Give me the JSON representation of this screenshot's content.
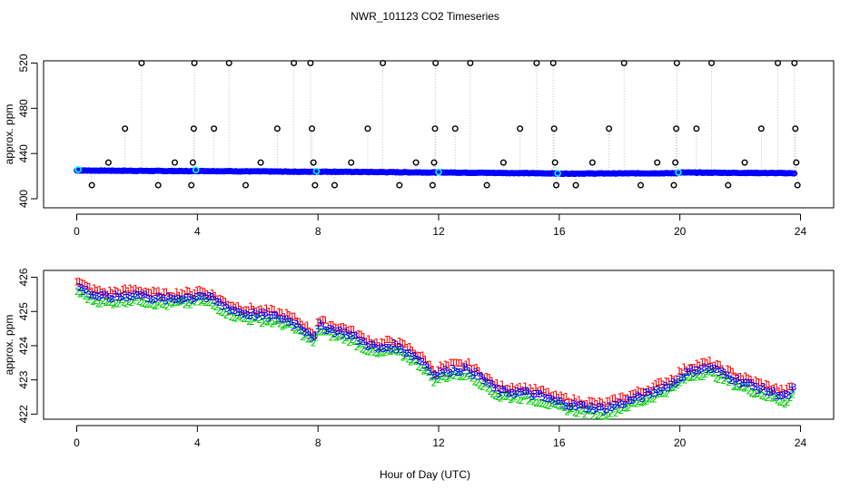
{
  "title": "NWR_101123  CO2 Timeseries",
  "xlabel": "Hour of Day (UTC)",
  "colors": {
    "series_1": "#ff0000",
    "series_2": "#00cc00",
    "series_3": "#0000ff",
    "cyan": "#00ffff",
    "black": "#000000",
    "gray": "#bebebe"
  },
  "chart_data": [
    {
      "type": "scatter",
      "panel": "top",
      "title": "NWR_101123  CO2 Timeseries",
      "xlabel": "",
      "ylabel": "approx. ppm",
      "xlim": [
        -1.1,
        25.1
      ],
      "ylim": [
        392,
        522
      ],
      "xticks": [
        0,
        4,
        8,
        12,
        16,
        20,
        24
      ],
      "xtick_labels": [
        "0",
        "4",
        "8",
        "12",
        "16",
        "20",
        "24"
      ],
      "yticks": [
        400,
        440,
        480,
        520
      ],
      "ytick_labels": [
        "400",
        "440",
        "480",
        "520"
      ],
      "baseline": {
        "description": "dense band of blue/cyan open circles (hourly-averaged values)",
        "segments": [
          {
            "x": [
              0,
              3.85
            ],
            "y": [
              425.0,
              424.4
            ]
          },
          {
            "x": [
              3.85,
              7.95
            ],
            "y": [
              424.6,
              423.8
            ]
          },
          {
            "x": [
              7.95,
              11.9
            ],
            "y": [
              424.0,
              423.2
            ]
          },
          {
            "x": [
              11.9,
              15.9
            ],
            "y": [
              423.3,
              422.4
            ]
          },
          {
            "x": [
              15.9,
              19.9
            ],
            "y": [
              422.2,
              422.6
            ]
          },
          {
            "x": [
              19.9,
              23.8
            ],
            "y": [
              423.2,
              422.6
            ]
          }
        ]
      },
      "cyan_markers": [
        {
          "x": 0.05,
          "y": 425.8
        },
        {
          "x": 3.95,
          "y": 425.5
        },
        {
          "x": 7.95,
          "y": 424.4
        },
        {
          "x": 12.0,
          "y": 423.7
        },
        {
          "x": 15.95,
          "y": 422.5
        },
        {
          "x": 19.95,
          "y": 423.3
        }
      ],
      "black_markers": [
        {
          "x": 0.5,
          "y": 412
        },
        {
          "x": 1.05,
          "y": 432
        },
        {
          "x": 1.6,
          "y": 462
        },
        {
          "x": 2.15,
          "y": 520
        },
        {
          "x": 2.7,
          "y": 412
        },
        {
          "x": 3.25,
          "y": 432
        },
        {
          "x": 3.8,
          "y": 412
        },
        {
          "x": 3.85,
          "y": 432
        },
        {
          "x": 3.88,
          "y": 462
        },
        {
          "x": 3.9,
          "y": 520
        },
        {
          "x": 4.55,
          "y": 462
        },
        {
          "x": 5.05,
          "y": 520
        },
        {
          "x": 5.6,
          "y": 412
        },
        {
          "x": 6.1,
          "y": 432
        },
        {
          "x": 6.65,
          "y": 462
        },
        {
          "x": 7.2,
          "y": 520
        },
        {
          "x": 7.75,
          "y": 520
        },
        {
          "x": 7.8,
          "y": 462
        },
        {
          "x": 7.85,
          "y": 432
        },
        {
          "x": 7.9,
          "y": 412
        },
        {
          "x": 8.55,
          "y": 412
        },
        {
          "x": 9.1,
          "y": 432
        },
        {
          "x": 9.65,
          "y": 462
        },
        {
          "x": 10.15,
          "y": 520
        },
        {
          "x": 10.7,
          "y": 412
        },
        {
          "x": 11.25,
          "y": 432
        },
        {
          "x": 11.8,
          "y": 412
        },
        {
          "x": 11.85,
          "y": 432
        },
        {
          "x": 11.88,
          "y": 462
        },
        {
          "x": 11.9,
          "y": 520
        },
        {
          "x": 12.55,
          "y": 462
        },
        {
          "x": 13.05,
          "y": 520
        },
        {
          "x": 13.6,
          "y": 412
        },
        {
          "x": 14.15,
          "y": 432
        },
        {
          "x": 14.7,
          "y": 462
        },
        {
          "x": 15.25,
          "y": 520
        },
        {
          "x": 15.8,
          "y": 520
        },
        {
          "x": 15.83,
          "y": 462
        },
        {
          "x": 15.86,
          "y": 432
        },
        {
          "x": 15.9,
          "y": 412
        },
        {
          "x": 16.55,
          "y": 412
        },
        {
          "x": 17.1,
          "y": 432
        },
        {
          "x": 17.65,
          "y": 462
        },
        {
          "x": 18.15,
          "y": 520
        },
        {
          "x": 18.7,
          "y": 412
        },
        {
          "x": 19.25,
          "y": 432
        },
        {
          "x": 19.8,
          "y": 412
        },
        {
          "x": 19.85,
          "y": 432
        },
        {
          "x": 19.88,
          "y": 462
        },
        {
          "x": 19.9,
          "y": 520
        },
        {
          "x": 20.55,
          "y": 462
        },
        {
          "x": 21.05,
          "y": 520
        },
        {
          "x": 21.6,
          "y": 412
        },
        {
          "x": 22.15,
          "y": 432
        },
        {
          "x": 22.7,
          "y": 462
        },
        {
          "x": 23.25,
          "y": 520
        },
        {
          "x": 23.8,
          "y": 520
        },
        {
          "x": 23.83,
          "y": 462
        },
        {
          "x": 23.86,
          "y": 432
        },
        {
          "x": 23.9,
          "y": 412
        }
      ]
    },
    {
      "type": "scatter",
      "panel": "bottom",
      "title": "",
      "xlabel": "Hour of Day (UTC)",
      "ylabel": "approx. ppm",
      "xlim": [
        -1.1,
        25.1
      ],
      "ylim": [
        421.85,
        426.2
      ],
      "xticks": [
        0,
        4,
        8,
        12,
        16,
        20,
        24
      ],
      "xtick_labels": [
        "0",
        "4",
        "8",
        "12",
        "16",
        "20",
        "24"
      ],
      "yticks": [
        422,
        423,
        424,
        425,
        426
      ],
      "ytick_labels": [
        "422",
        "423",
        "424",
        "425",
        "426"
      ],
      "marker_style": "numerals '1', '2', '3' denote series",
      "series": [
        {
          "name": "1",
          "color": "#ff0000",
          "offset": 0.15
        },
        {
          "name": "2",
          "color": "#00cc00",
          "offset": -0.15
        },
        {
          "name": "3",
          "color": "#0000ff",
          "offset": 0.0
        }
      ],
      "trend_knots": {
        "x": [
          0,
          0.5,
          1.0,
          1.5,
          2.0,
          2.5,
          3.0,
          3.5,
          3.9,
          4.0,
          4.5,
          5.0,
          5.5,
          6.0,
          6.5,
          7.0,
          7.5,
          7.9,
          8.0,
          8.5,
          9.0,
          9.5,
          10.0,
          10.5,
          11.0,
          11.5,
          11.9,
          12.0,
          12.5,
          13.0,
          13.5,
          14.0,
          14.5,
          15.0,
          15.5,
          15.9,
          16.0,
          16.5,
          17.0,
          17.5,
          18.0,
          18.5,
          19.0,
          19.5,
          19.9,
          20.0,
          20.5,
          21.0,
          21.5,
          22.0,
          22.5,
          23.0,
          23.5,
          23.8
        ],
        "y": [
          425.75,
          425.5,
          425.4,
          425.45,
          425.5,
          425.4,
          425.35,
          425.4,
          425.4,
          425.5,
          425.35,
          425.1,
          424.95,
          424.9,
          424.85,
          424.75,
          424.5,
          424.2,
          424.6,
          424.45,
          424.35,
          424.1,
          423.9,
          424.0,
          423.8,
          423.5,
          423.1,
          423.2,
          423.3,
          423.3,
          423.0,
          422.65,
          422.65,
          422.6,
          422.5,
          422.35,
          422.35,
          422.25,
          422.2,
          422.15,
          422.3,
          422.45,
          422.6,
          422.8,
          422.95,
          423.1,
          423.3,
          423.35,
          423.15,
          422.95,
          422.8,
          422.65,
          422.5,
          422.75
        ]
      }
    }
  ]
}
